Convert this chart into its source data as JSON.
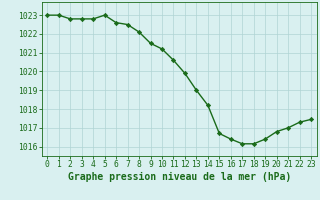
{
  "x": [
    0,
    1,
    2,
    3,
    4,
    5,
    6,
    7,
    8,
    9,
    10,
    11,
    12,
    13,
    14,
    15,
    16,
    17,
    18,
    19,
    20,
    21,
    22,
    23
  ],
  "y": [
    1023.0,
    1023.0,
    1022.8,
    1022.8,
    1022.8,
    1023.0,
    1022.6,
    1022.5,
    1022.1,
    1021.5,
    1021.2,
    1020.6,
    1019.9,
    1019.0,
    1018.2,
    1016.7,
    1016.4,
    1016.15,
    1016.15,
    1016.4,
    1016.8,
    1017.0,
    1017.3,
    1017.45
  ],
  "line_color": "#1a6b1a",
  "marker": "D",
  "marker_size": 2.2,
  "line_width": 1.0,
  "bg_color": "#d9f0f0",
  "grid_color": "#b0d4d4",
  "xlabel": "Graphe pression niveau de la mer (hPa)",
  "xlabel_color": "#1a6b1a",
  "xlabel_fontsize": 7,
  "tick_color": "#1a6b1a",
  "tick_fontsize": 5.8,
  "ylim": [
    1015.5,
    1023.7
  ],
  "yticks": [
    1016,
    1017,
    1018,
    1019,
    1020,
    1021,
    1022,
    1023
  ],
  "xlim": [
    -0.5,
    23.5
  ],
  "xticks": [
    0,
    1,
    2,
    3,
    4,
    5,
    6,
    7,
    8,
    9,
    10,
    11,
    12,
    13,
    14,
    15,
    16,
    17,
    18,
    19,
    20,
    21,
    22,
    23
  ]
}
